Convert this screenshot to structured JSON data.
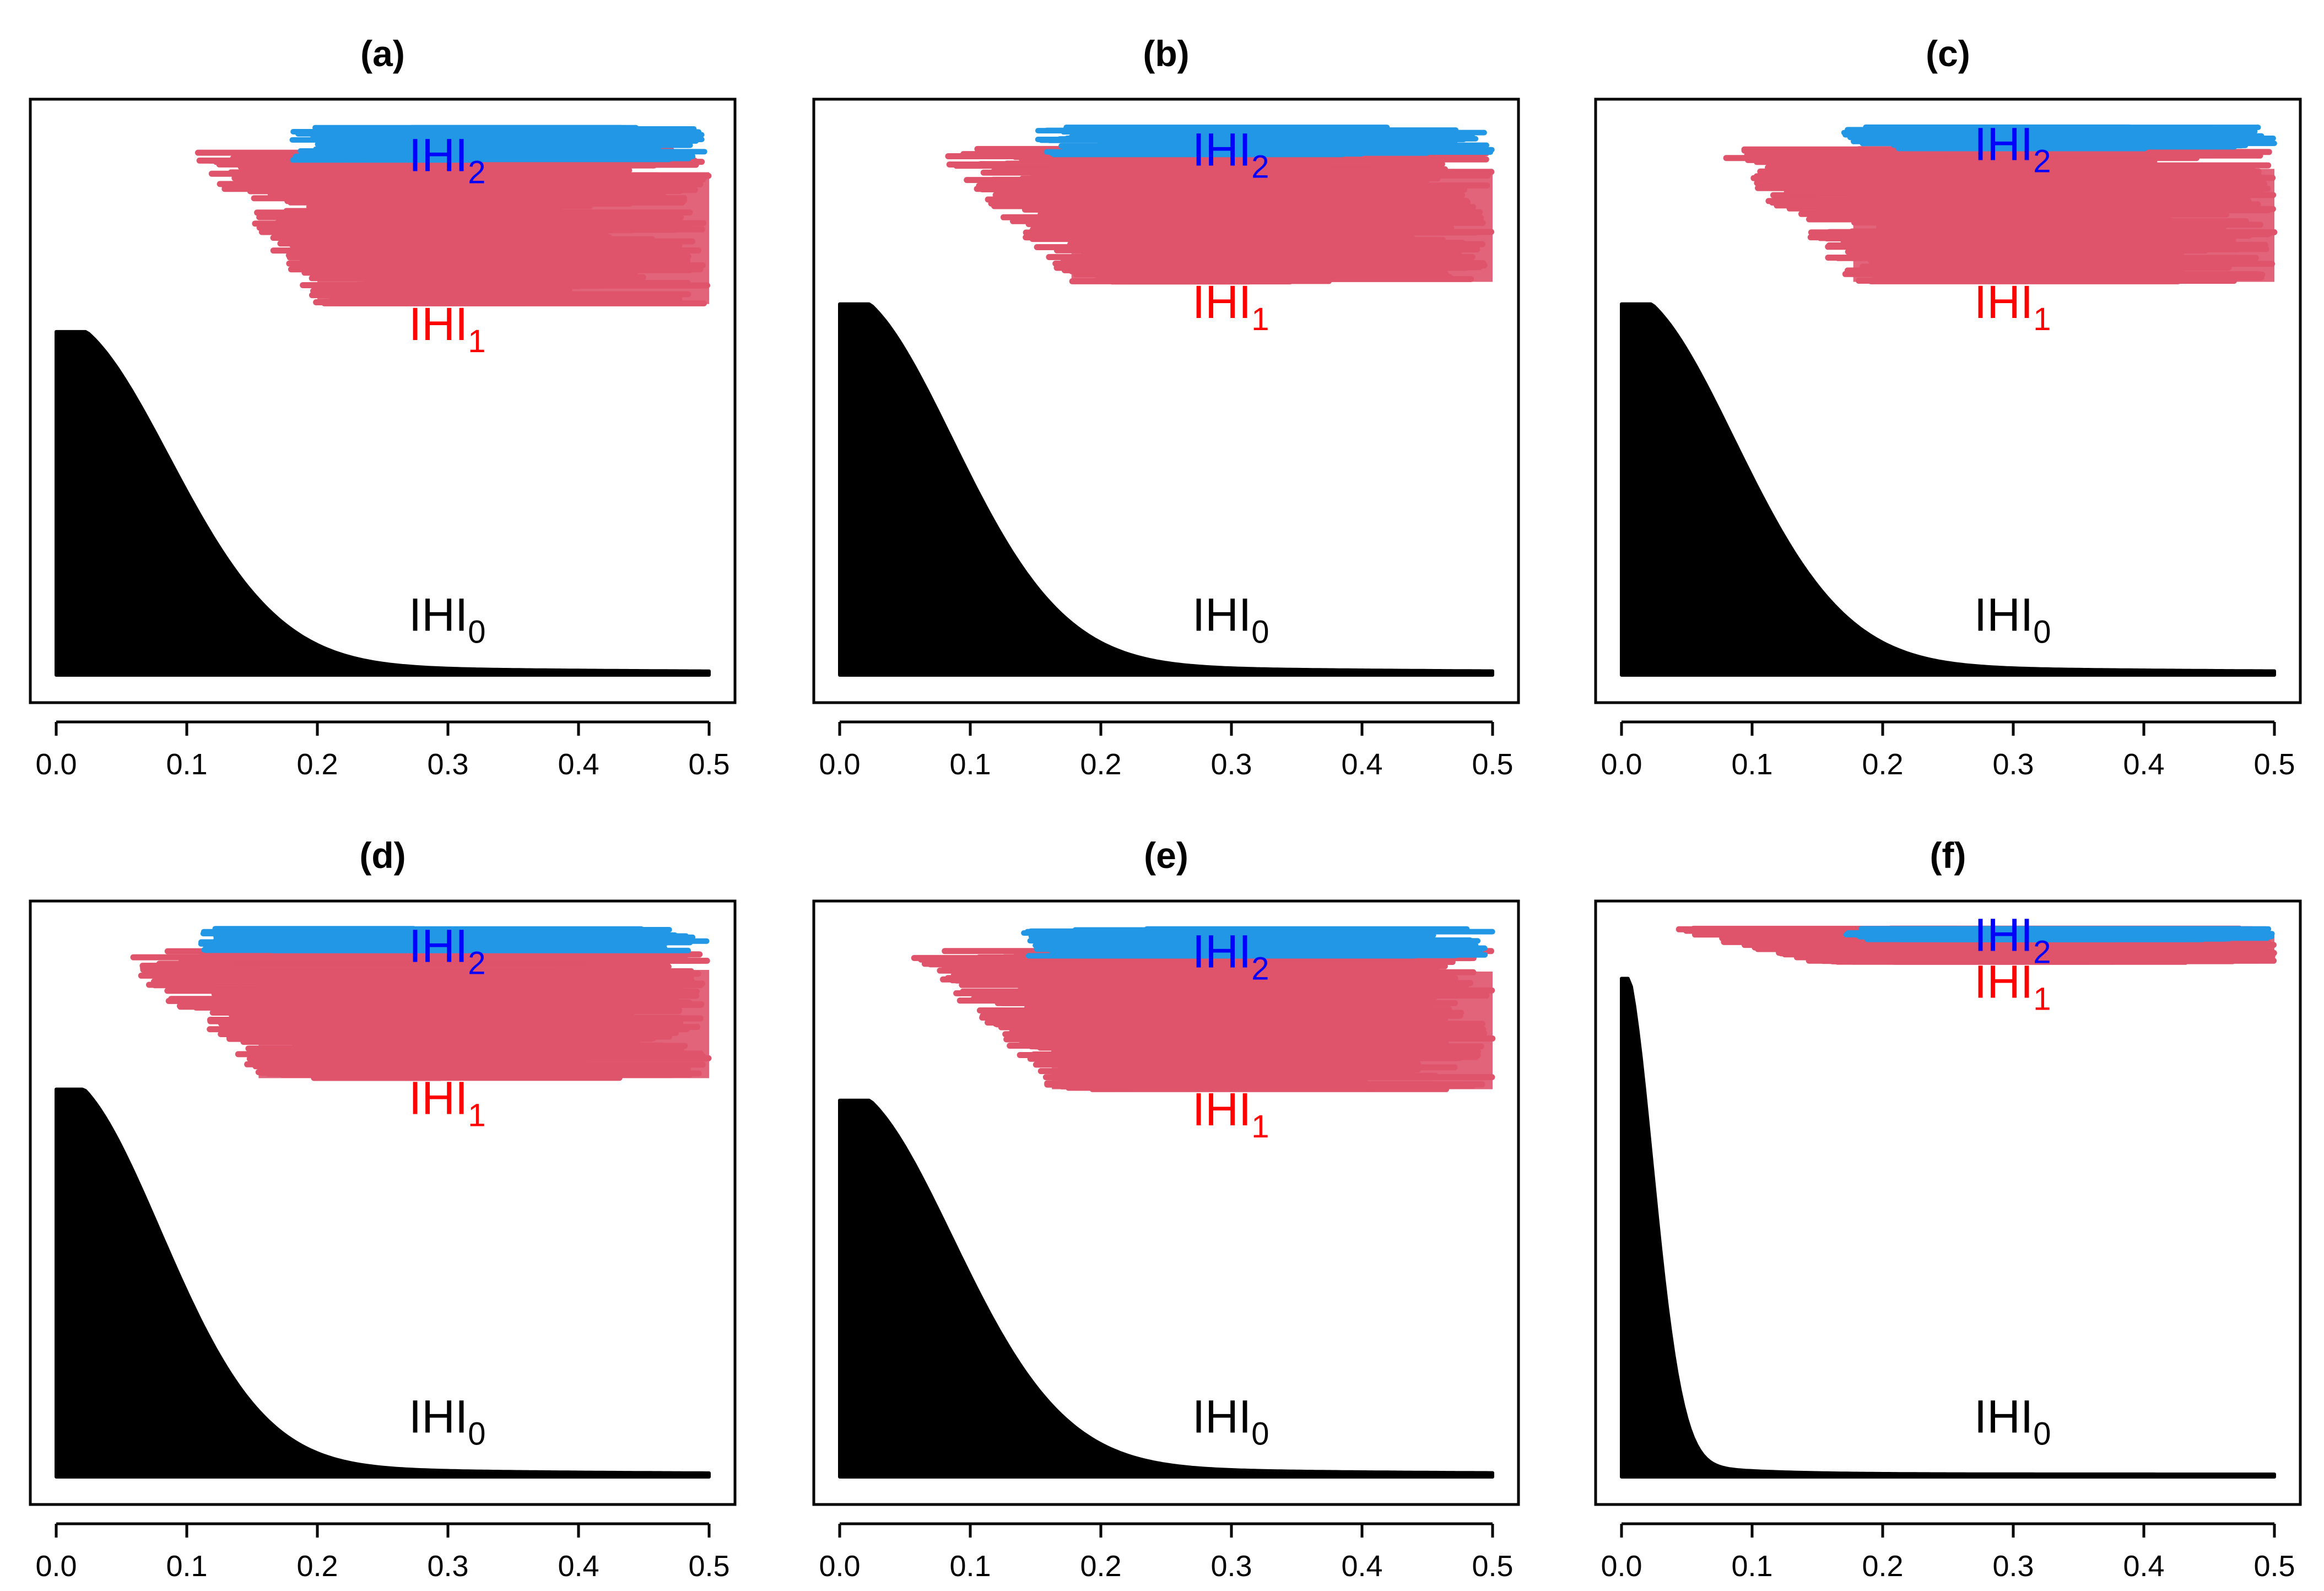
{
  "colors": {
    "IHI0": "#000000",
    "IHI1": "#DF536B",
    "IHI2": "#2297E6",
    "IHI1_label": "#FF0000",
    "IHI2_label": "#0000FF"
  },
  "chart_data": [
    {
      "type": "scatter",
      "title": "(a)",
      "xlabel": "",
      "ylabel": "",
      "xlim": [
        0,
        0.5
      ],
      "x_ticks": [
        "0.0",
        "0.1",
        "0.2",
        "0.3",
        "0.4",
        "0.5"
      ],
      "y_axis_shown": false,
      "series": [
        {
          "name": "IHI0",
          "label_main": "IHI",
          "label_sub": "0",
          "color": "#000000",
          "label_color": "#000000",
          "x_range": [
            0,
            0.5
          ],
          "peak_level": 0.62,
          "decay_scale": 0.13,
          "baseline_tail": 0.005
        },
        {
          "name": "IHI1",
          "label_main": "IHI",
          "label_sub": "1",
          "color": "#DF536B",
          "label_color": "#FF0000",
          "x_range": [
            0.1,
            0.5
          ],
          "y_range": [
            0.67,
            0.95
          ]
        },
        {
          "name": "IHI2",
          "label_main": "IHI",
          "label_sub": "2",
          "color": "#2297E6",
          "label_color": "#0000FF",
          "x_range": [
            0.18,
            0.5
          ],
          "y_range": [
            0.93,
            0.99
          ]
        }
      ]
    },
    {
      "type": "scatter",
      "title": "(b)",
      "xlabel": "",
      "ylabel": "",
      "xlim": [
        0,
        0.5
      ],
      "x_ticks": [
        "0.0",
        "0.1",
        "0.2",
        "0.3",
        "0.4",
        "0.5"
      ],
      "y_axis_shown": false,
      "series": [
        {
          "name": "IHI0",
          "label_main": "IHI",
          "label_sub": "0",
          "color": "#000000",
          "label_color": "#000000",
          "x_range": [
            0,
            0.5
          ],
          "peak_level": 0.67,
          "decay_scale": 0.13,
          "baseline_tail": 0.005
        },
        {
          "name": "IHI1",
          "label_main": "IHI",
          "label_sub": "1",
          "color": "#DF536B",
          "label_color": "#FF0000",
          "x_range": [
            0.07,
            0.5
          ],
          "y_range": [
            0.71,
            0.95
          ]
        },
        {
          "name": "IHI2",
          "label_main": "IHI",
          "label_sub": "2",
          "color": "#2297E6",
          "label_color": "#0000FF",
          "x_range": [
            0.15,
            0.5
          ],
          "y_range": [
            0.94,
            0.99
          ]
        }
      ]
    },
    {
      "type": "scatter",
      "title": "(c)",
      "xlabel": "",
      "ylabel": "",
      "xlim": [
        0,
        0.5
      ],
      "x_ticks": [
        "0.0",
        "0.1",
        "0.2",
        "0.3",
        "0.4",
        "0.5"
      ],
      "y_axis_shown": false,
      "series": [
        {
          "name": "IHI0",
          "label_main": "IHI",
          "label_sub": "0",
          "color": "#000000",
          "label_color": "#000000",
          "x_range": [
            0,
            0.5
          ],
          "peak_level": 0.67,
          "decay_scale": 0.13,
          "baseline_tail": 0.005
        },
        {
          "name": "IHI1",
          "label_main": "IHI",
          "label_sub": "1",
          "color": "#DF536B",
          "label_color": "#FF0000",
          "x_range": [
            0.07,
            0.5
          ],
          "y_range": [
            0.71,
            0.95
          ]
        },
        {
          "name": "IHI2",
          "label_main": "IHI",
          "label_sub": "2",
          "color": "#2297E6",
          "label_color": "#0000FF",
          "x_range": [
            0.17,
            0.5
          ],
          "y_range": [
            0.95,
            0.99
          ]
        }
      ]
    },
    {
      "type": "scatter",
      "title": "(d)",
      "xlabel": "",
      "ylabel": "",
      "xlim": [
        0,
        0.5
      ],
      "x_ticks": [
        "0.0",
        "0.1",
        "0.2",
        "0.3",
        "0.4",
        "0.5"
      ],
      "y_axis_shown": false,
      "series": [
        {
          "name": "IHI0",
          "label_main": "IHI",
          "label_sub": "0",
          "color": "#000000",
          "label_color": "#000000",
          "x_range": [
            0,
            0.5
          ],
          "peak_level": 0.7,
          "decay_scale": 0.12,
          "baseline_tail": 0.005
        },
        {
          "name": "IHI1",
          "label_main": "IHI",
          "label_sub": "1",
          "color": "#DF536B",
          "label_color": "#FF0000",
          "x_range": [
            0.04,
            0.5
          ],
          "y_range": [
            0.72,
            0.95
          ]
        },
        {
          "name": "IHI2",
          "label_main": "IHI",
          "label_sub": "2",
          "color": "#2297E6",
          "label_color": "#0000FF",
          "x_range": [
            0.11,
            0.5
          ],
          "y_range": [
            0.95,
            0.99
          ]
        }
      ]
    },
    {
      "type": "scatter",
      "title": "(e)",
      "xlabel": "",
      "ylabel": "",
      "xlim": [
        0,
        0.5
      ],
      "x_ticks": [
        "0.0",
        "0.1",
        "0.2",
        "0.3",
        "0.4",
        "0.5"
      ],
      "y_axis_shown": false,
      "series": [
        {
          "name": "IHI0",
          "label_main": "IHI",
          "label_sub": "0",
          "color": "#000000",
          "label_color": "#000000",
          "x_range": [
            0,
            0.5
          ],
          "peak_level": 0.68,
          "decay_scale": 0.13,
          "baseline_tail": 0.005
        },
        {
          "name": "IHI1",
          "label_main": "IHI",
          "label_sub": "1",
          "color": "#DF536B",
          "label_color": "#FF0000",
          "x_range": [
            0.05,
            0.5
          ],
          "y_range": [
            0.7,
            0.95
          ]
        },
        {
          "name": "IHI2",
          "label_main": "IHI",
          "label_sub": "2",
          "color": "#2297E6",
          "label_color": "#0000FF",
          "x_range": [
            0.14,
            0.5
          ],
          "y_range": [
            0.94,
            0.99
          ]
        }
      ]
    },
    {
      "type": "scatter",
      "title": "(f)",
      "xlabel": "",
      "ylabel": "",
      "xlim": [
        0,
        0.5
      ],
      "x_ticks": [
        "0.0",
        "0.1",
        "0.2",
        "0.3",
        "0.4",
        "0.5"
      ],
      "y_axis_shown": false,
      "series": [
        {
          "name": "IHI0",
          "label_main": "IHI",
          "label_sub": "0",
          "color": "#000000",
          "label_color": "#000000",
          "x_range": [
            0,
            0.5
          ],
          "peak_level": 0.9,
          "decay_scale": 0.035,
          "baseline_tail": 0.005
        },
        {
          "name": "IHI1",
          "label_main": "IHI",
          "label_sub": "1",
          "color": "#DF536B",
          "label_color": "#FF0000",
          "x_range": [
            0.03,
            0.5
          ],
          "y_range": [
            0.93,
            0.99
          ]
        },
        {
          "name": "IHI2",
          "label_main": "IHI",
          "label_sub": "2",
          "color": "#2297E6",
          "label_color": "#0000FF",
          "x_range": [
            0.17,
            0.5
          ],
          "y_range": [
            0.97,
            0.99
          ]
        }
      ]
    }
  ]
}
